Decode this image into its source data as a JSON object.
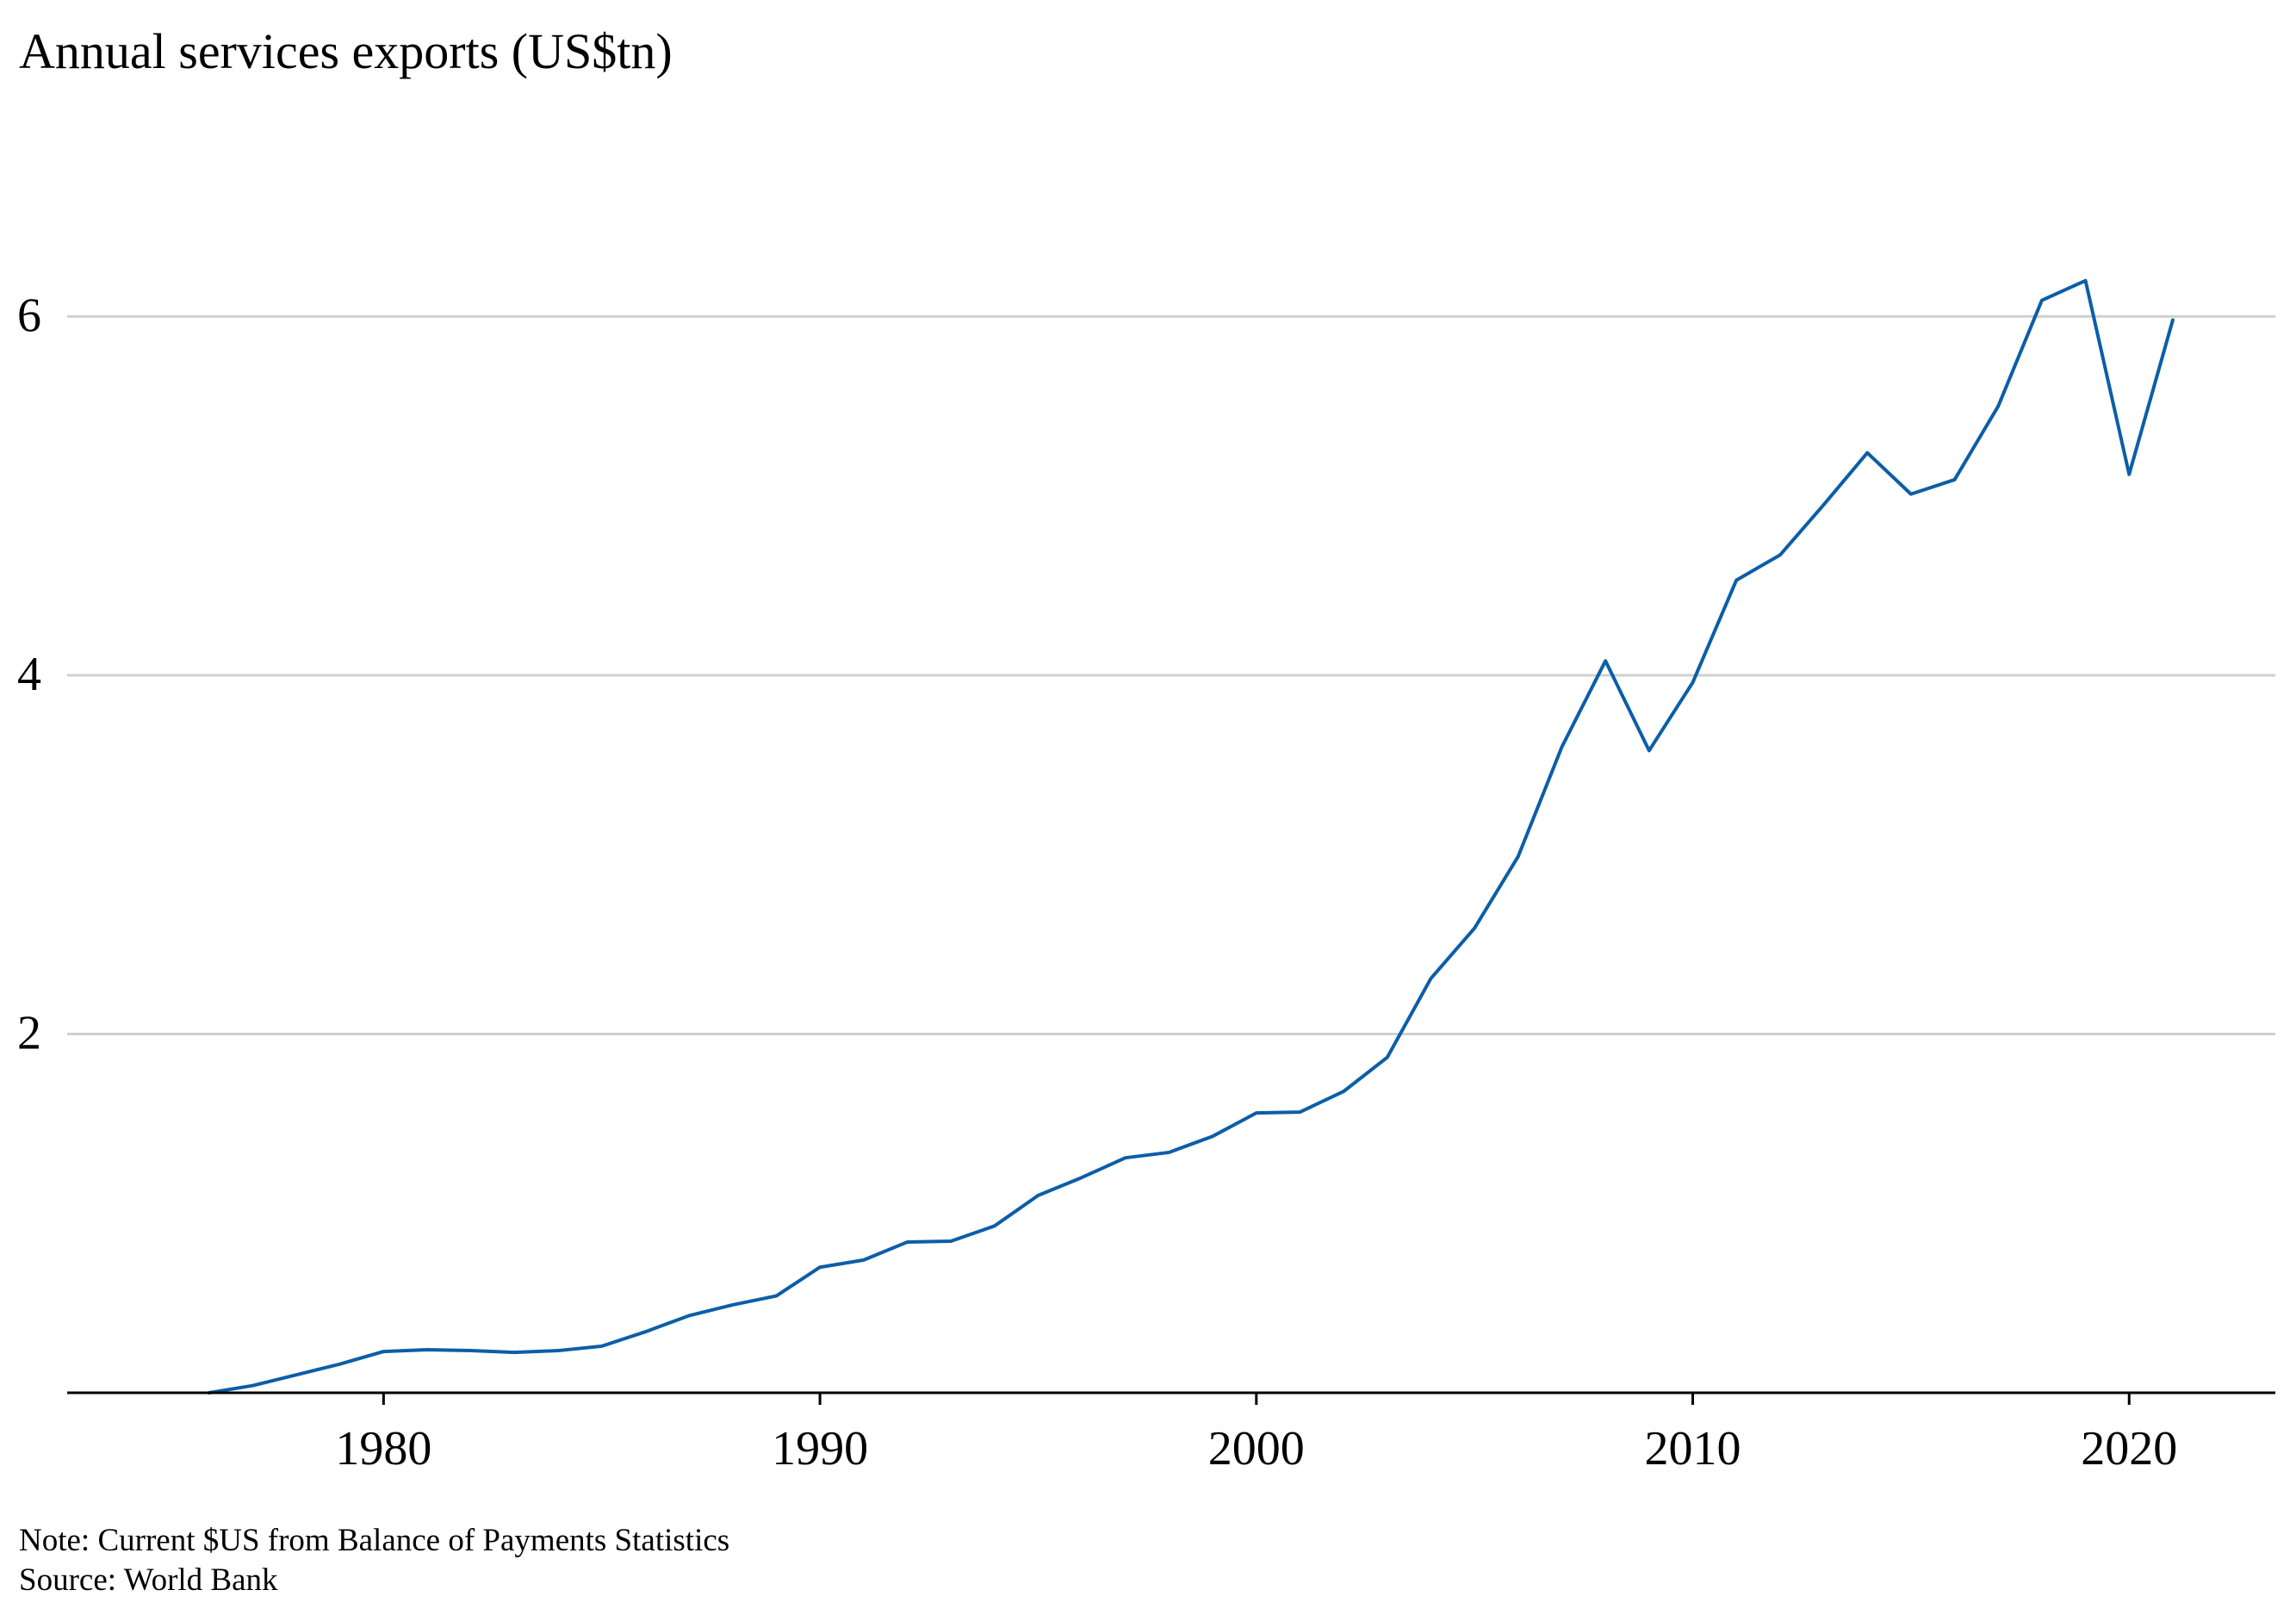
{
  "colors": {
    "series": "#0b5ea8",
    "grid": "#d0d0d0",
    "axis": "#000000",
    "text": "#000000"
  },
  "footnotes": {
    "note": "Note: Current $US from Balance of Payments Statistics",
    "source": "Source: World Bank"
  },
  "chart_data": {
    "type": "line",
    "title": "Annual services exports (US$tn)",
    "xlabel": "",
    "ylabel": "",
    "grid": "horizontal",
    "legend": "none",
    "xlim": [
      1972.75,
      2023.35
    ],
    "ylim": [
      0,
      6.9
    ],
    "x_ticks": [
      1980,
      1990,
      2000,
      2010,
      2020
    ],
    "x_tick_labels": [
      "1980",
      "1990",
      "2000",
      "2010",
      "2020"
    ],
    "y_ticks": [
      2,
      4,
      6
    ],
    "y_tick_labels": [
      "2",
      "4",
      "6"
    ],
    "series": [
      {
        "x": [
          1976,
          1977,
          1978,
          1979,
          1980,
          1981,
          1982,
          1983,
          1984,
          1985,
          1986,
          1987,
          1988,
          1989,
          1990,
          1991,
          1992,
          1993,
          1994,
          1995,
          1996,
          1997,
          1998,
          1999,
          2000,
          2001,
          2002,
          2003,
          2004,
          2005,
          2006,
          2007,
          2008,
          2009,
          2010,
          2011,
          2012,
          2013,
          2014,
          2015,
          2016,
          2017,
          2018,
          2019,
          2020,
          2021
        ],
        "y": [
          0.0,
          0.04,
          0.1,
          0.16,
          0.23,
          0.24,
          0.235,
          0.225,
          0.235,
          0.26,
          0.34,
          0.43,
          0.49,
          0.54,
          0.7,
          0.74,
          0.84,
          0.845,
          0.93,
          1.1,
          1.2,
          1.31,
          1.34,
          1.43,
          1.56,
          1.565,
          1.68,
          1.87,
          2.31,
          2.59,
          2.99,
          3.6,
          4.08,
          3.58,
          3.96,
          4.53,
          4.67,
          4.95,
          5.24,
          5.01,
          5.09,
          5.5,
          6.09,
          6.2,
          5.12,
          5.98
        ]
      }
    ]
  }
}
